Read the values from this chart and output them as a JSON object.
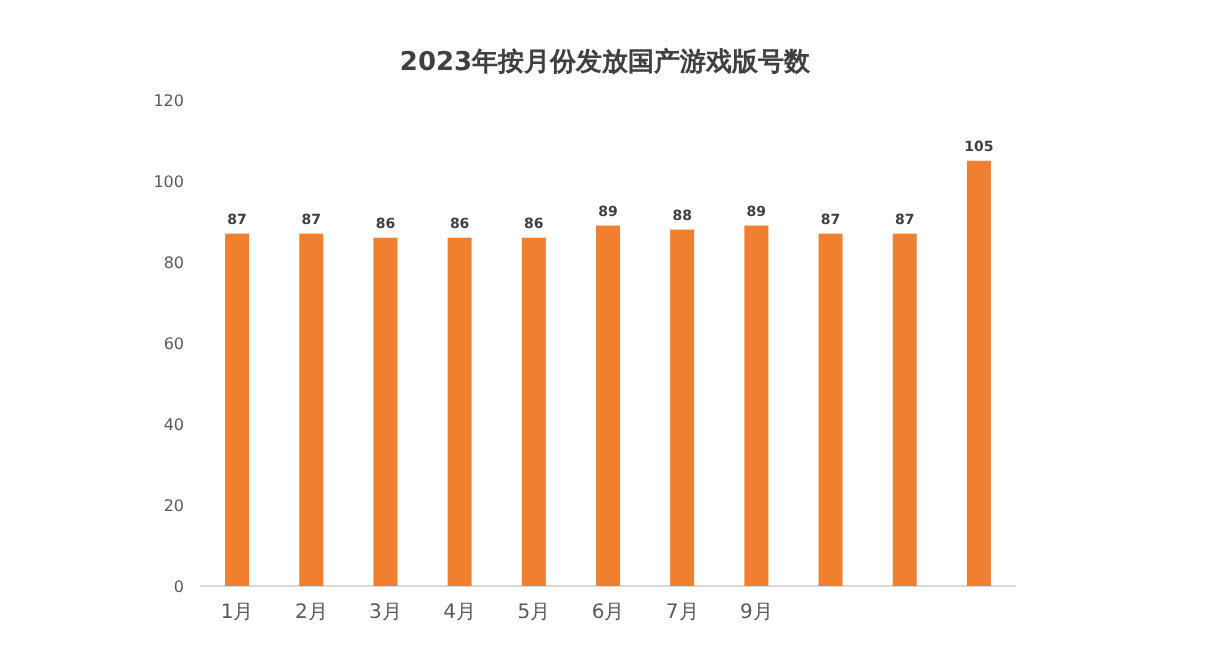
{
  "chart_data": {
    "type": "bar",
    "title": "2023年按月份发放国产游戏版号数",
    "categories": [
      "1月",
      "2月",
      "3月",
      "4月",
      "5月",
      "6月",
      "7月",
      "9月",
      null,
      null,
      null
    ],
    "values": [
      87,
      87,
      86,
      86,
      86,
      89,
      88,
      89,
      87,
      87,
      105
    ],
    "color": "#f08030",
    "ylim": [
      0,
      120
    ],
    "yticks": [
      0,
      20,
      40,
      60,
      80,
      100,
      120
    ],
    "data_labels": true,
    "grid": false
  }
}
